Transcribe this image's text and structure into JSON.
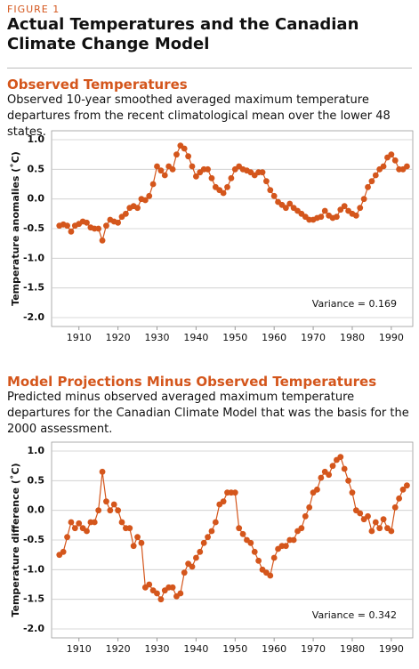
{
  "figure_label": "FIGURE 1",
  "title": "Actual Temperatures and the Canadian Climate Change Model",
  "chart_data": [
    {
      "type": "line",
      "title": "Observed Temperatures",
      "subtitle": "Observed 10-year smoothed averaged maximum temperature departures from the recent climatological mean over the lower 48 states.",
      "ylabel": "Temperature anomalies (˚C)",
      "annotation": "Variance = 0.169",
      "color": "#d4561c",
      "grid": true,
      "x": [
        1905,
        1906,
        1907,
        1908,
        1909,
        1910,
        1911,
        1912,
        1913,
        1914,
        1915,
        1916,
        1917,
        1918,
        1919,
        1920,
        1921,
        1922,
        1923,
        1924,
        1925,
        1926,
        1927,
        1928,
        1929,
        1930,
        1931,
        1932,
        1933,
        1934,
        1935,
        1936,
        1937,
        1938,
        1939,
        1940,
        1941,
        1942,
        1943,
        1944,
        1945,
        1946,
        1947,
        1948,
        1949,
        1950,
        1951,
        1952,
        1953,
        1954,
        1955,
        1956,
        1957,
        1958,
        1959,
        1960,
        1961,
        1962,
        1963,
        1964,
        1965,
        1966,
        1967,
        1968,
        1969,
        1970,
        1971,
        1972,
        1973,
        1974,
        1975,
        1976,
        1977,
        1978,
        1979,
        1980,
        1981,
        1982,
        1983,
        1984,
        1985,
        1986,
        1987,
        1988,
        1989,
        1990,
        1991,
        1992,
        1993,
        1994
      ],
      "values": [
        -0.45,
        -0.43,
        -0.45,
        -0.55,
        -0.45,
        -0.42,
        -0.38,
        -0.4,
        -0.48,
        -0.5,
        -0.5,
        -0.7,
        -0.45,
        -0.35,
        -0.38,
        -0.4,
        -0.3,
        -0.25,
        -0.15,
        -0.12,
        -0.15,
        0.0,
        -0.02,
        0.05,
        0.25,
        0.55,
        0.48,
        0.4,
        0.55,
        0.5,
        0.75,
        0.9,
        0.85,
        0.72,
        0.55,
        0.38,
        0.45,
        0.5,
        0.5,
        0.35,
        0.2,
        0.15,
        0.1,
        0.2,
        0.35,
        0.5,
        0.55,
        0.5,
        0.48,
        0.45,
        0.4,
        0.45,
        0.45,
        0.3,
        0.15,
        0.05,
        -0.05,
        -0.1,
        -0.15,
        -0.08,
        -0.15,
        -0.2,
        -0.25,
        -0.3,
        -0.35,
        -0.35,
        -0.32,
        -0.3,
        -0.2,
        -0.28,
        -0.32,
        -0.3,
        -0.18,
        -0.12,
        -0.2,
        -0.25,
        -0.28,
        -0.15,
        0.0,
        0.2,
        0.3,
        0.4,
        0.5,
        0.55,
        0.7,
        0.75,
        0.65,
        0.5,
        0.5,
        0.55
      ],
      "xlim": [
        1903,
        1995.5
      ],
      "xticks": [
        1910,
        1920,
        1930,
        1940,
        1950,
        1960,
        1970,
        1980,
        1990
      ],
      "ylim": [
        -2,
        1
      ],
      "yticks": [
        {
          "value": -2,
          "label": "-2.0"
        },
        -1.5,
        {
          "value": -1,
          "label": "-1.0"
        },
        -0.5,
        {
          "value": 0,
          "label": "0.0"
        },
        0.5,
        {
          "value": 1,
          "label": "1.0"
        }
      ]
    },
    {
      "type": "line",
      "title": "Model Projections Minus Observed Temperatures",
      "subtitle": "Predicted minus observed averaged maximum temperature departures for the Canadian Climate Model that was the basis for the 2000 assessment.",
      "ylabel": "Temperature difference (˚C)",
      "annotation": "Variance = 0.342",
      "color": "#d4561c",
      "grid": true,
      "x": [
        1905,
        1906,
        1907,
        1908,
        1909,
        1910,
        1911,
        1912,
        1913,
        1914,
        1915,
        1916,
        1917,
        1918,
        1919,
        1920,
        1921,
        1922,
        1923,
        1924,
        1925,
        1926,
        1927,
        1928,
        1929,
        1930,
        1931,
        1932,
        1933,
        1934,
        1935,
        1936,
        1937,
        1938,
        1939,
        1940,
        1941,
        1942,
        1943,
        1944,
        1945,
        1946,
        1947,
        1948,
        1949,
        1950,
        1951,
        1952,
        1953,
        1954,
        1955,
        1956,
        1957,
        1958,
        1959,
        1960,
        1961,
        1962,
        1963,
        1964,
        1965,
        1966,
        1967,
        1968,
        1969,
        1970,
        1971,
        1972,
        1973,
        1974,
        1975,
        1976,
        1977,
        1978,
        1979,
        1980,
        1981,
        1982,
        1983,
        1984,
        1985,
        1986,
        1987,
        1988,
        1989,
        1990,
        1991,
        1992,
        1993,
        1994
      ],
      "values": [
        -0.75,
        -0.7,
        -0.45,
        -0.2,
        -0.3,
        -0.22,
        -0.3,
        -0.35,
        -0.2,
        -0.2,
        0.0,
        0.65,
        0.15,
        0.0,
        0.1,
        0.0,
        -0.2,
        -0.3,
        -0.3,
        -0.6,
        -0.45,
        -0.55,
        -1.3,
        -1.25,
        -1.35,
        -1.4,
        -1.5,
        -1.35,
        -1.3,
        -1.3,
        -1.45,
        -1.4,
        -1.05,
        -0.9,
        -0.95,
        -0.8,
        -0.7,
        -0.55,
        -0.45,
        -0.35,
        -0.2,
        0.1,
        0.15,
        0.3,
        0.3,
        0.3,
        -0.3,
        -0.4,
        -0.5,
        -0.55,
        -0.7,
        -0.85,
        -1.0,
        -1.05,
        -1.1,
        -0.8,
        -0.65,
        -0.6,
        -0.6,
        -0.5,
        -0.5,
        -0.35,
        -0.3,
        -0.1,
        0.05,
        0.3,
        0.35,
        0.55,
        0.65,
        0.6,
        0.75,
        0.85,
        0.9,
        0.7,
        0.5,
        0.3,
        0.0,
        -0.05,
        -0.15,
        -0.1,
        -0.35,
        -0.2,
        -0.3,
        -0.15,
        -0.3,
        -0.35,
        0.05,
        0.2,
        0.35,
        0.42
      ],
      "xlim": [
        1903,
        1995.5
      ],
      "xticks": [
        1910,
        1920,
        1930,
        1940,
        1950,
        1960,
        1970,
        1980,
        1990
      ],
      "ylim": [
        -2,
        1
      ],
      "yticks": [
        {
          "value": -2,
          "label": "-2.0"
        },
        -1.5,
        {
          "value": -1,
          "label": "-1.0"
        },
        -0.5,
        {
          "value": 0,
          "label": "0.0"
        },
        0.5,
        {
          "value": 1,
          "label": "1.0"
        }
      ]
    }
  ]
}
